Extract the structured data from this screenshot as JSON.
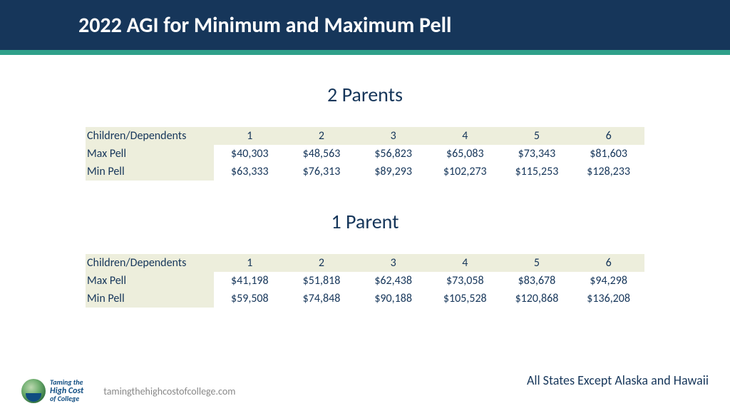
{
  "colors": {
    "navy": "#16365a",
    "teal": "#2fa08a",
    "row_bg": "#edeedc",
    "footer_gray": "#888888"
  },
  "title": "2022 AGI for Minimum and Maximum Pell",
  "section1": {
    "heading": "2 Parents",
    "header_label": "Children/Dependents",
    "cols": [
      "1",
      "2",
      "3",
      "4",
      "5",
      "6"
    ],
    "rows": [
      {
        "label": "Max Pell",
        "values": [
          "$40,303",
          "$48,563",
          "$56,823",
          "$65,083",
          "$73,343",
          "$81,603"
        ]
      },
      {
        "label": "Min Pell",
        "values": [
          "$63,333",
          "$76,313",
          "$89,293",
          "$102,273",
          "$115,253",
          "$128,233"
        ]
      }
    ]
  },
  "section2": {
    "heading": "1 Parent",
    "header_label": "Children/Dependents",
    "cols": [
      "1",
      "2",
      "3",
      "4",
      "5",
      "6"
    ],
    "rows": [
      {
        "label": "Max Pell",
        "values": [
          "$41,198",
          "$51,818",
          "$62,438",
          "$73,058",
          "$83,678",
          "$94,298"
        ]
      },
      {
        "label": "Min Pell",
        "values": [
          "$59,508",
          "$74,848",
          "$90,188",
          "$105,528",
          "$120,868",
          "$136,208"
        ]
      }
    ]
  },
  "footer": {
    "logo_line1": "Taming the",
    "logo_line2": "High Cost",
    "logo_line3": "of College",
    "url": "tamingthehighcostofcollege.com",
    "note": "All States Except Alaska and Hawaii"
  }
}
